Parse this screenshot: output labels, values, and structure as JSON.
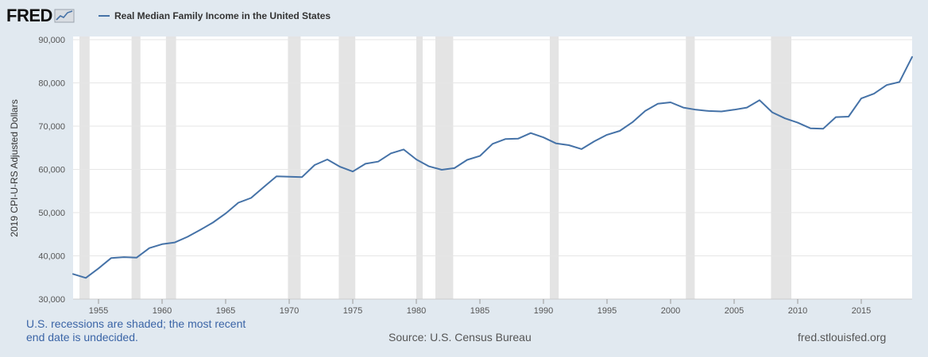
{
  "header": {
    "logo_text": "FRED",
    "legend_label": "Real Median Family Income in the United States",
    "legend_color": "#4572a7"
  },
  "footer": {
    "note": "U.S. recessions are shaded; the most recent end date is undecided.",
    "source": "Source: U.S. Census Bureau",
    "site": "fred.stlouisfed.org"
  },
  "chart_data": {
    "type": "line",
    "title": "",
    "xlabel": "",
    "ylabel": "2019 CPI-U-RS Adjusted Dollars",
    "xlim": [
      1953,
      2019
    ],
    "ylim": [
      30000,
      90000
    ],
    "x_ticks": [
      1955,
      1960,
      1965,
      1970,
      1975,
      1980,
      1985,
      1990,
      1995,
      2000,
      2005,
      2010,
      2015
    ],
    "y_ticks": [
      30000,
      40000,
      50000,
      60000,
      70000,
      80000,
      90000
    ],
    "y_tick_labels": [
      "30,000",
      "40,000",
      "50,000",
      "60,000",
      "70,000",
      "80,000",
      "90,000"
    ],
    "grid": true,
    "series": [
      {
        "name": "Real Median Family Income in the United States",
        "color": "#4572a7",
        "x": [
          1953,
          1954,
          1955,
          1956,
          1957,
          1958,
          1959,
          1960,
          1961,
          1962,
          1963,
          1964,
          1965,
          1966,
          1967,
          1968,
          1969,
          1970,
          1971,
          1972,
          1973,
          1974,
          1975,
          1976,
          1977,
          1978,
          1979,
          1980,
          1981,
          1982,
          1983,
          1984,
          1985,
          1986,
          1987,
          1988,
          1989,
          1990,
          1991,
          1992,
          1993,
          1994,
          1995,
          1996,
          1997,
          1998,
          1999,
          2000,
          2001,
          2002,
          2003,
          2004,
          2005,
          2006,
          2007,
          2008,
          2009,
          2010,
          2011,
          2012,
          2013,
          2014,
          2015,
          2016,
          2017,
          2018,
          2019
        ],
        "values": [
          35800,
          34900,
          37100,
          39500,
          39700,
          39600,
          41800,
          42700,
          43100,
          44400,
          46000,
          47700,
          49800,
          52300,
          53400,
          55900,
          58400,
          58300,
          58200,
          61000,
          62300,
          60600,
          59500,
          61300,
          61800,
          63700,
          64600,
          62300,
          60700,
          59900,
          60300,
          62200,
          63100,
          65900,
          67000,
          67100,
          68400,
          67400,
          66000,
          65600,
          64700,
          66500,
          68000,
          68900,
          70900,
          73500,
          75200,
          75500,
          74300,
          73800,
          73500,
          73400,
          73800,
          74300,
          76000,
          73200,
          71800,
          70800,
          69500,
          69400,
          72100,
          72200,
          76400,
          77500,
          79500,
          80200,
          86000
        ]
      }
    ],
    "recessions": [
      [
        1953.5,
        1954.3
      ],
      [
        1957.6,
        1958.3
      ],
      [
        1960.3,
        1961.1
      ],
      [
        1969.9,
        1970.9
      ],
      [
        1973.9,
        1975.2
      ],
      [
        1980.0,
        1980.5
      ],
      [
        1981.5,
        1982.9
      ],
      [
        1990.5,
        1991.2
      ],
      [
        2001.2,
        2001.9
      ],
      [
        2007.9,
        2009.5
      ]
    ],
    "recession_color": "#e4e4e4"
  }
}
